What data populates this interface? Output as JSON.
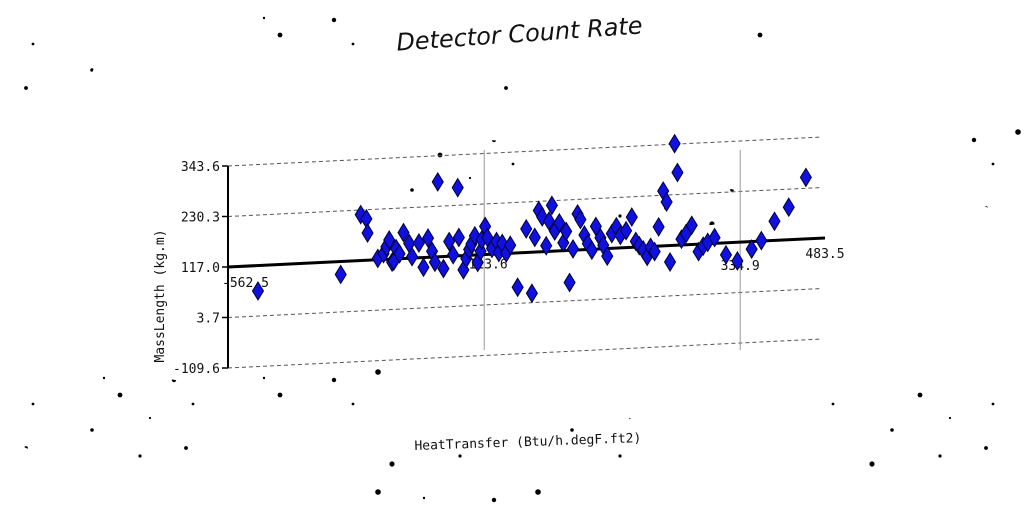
{
  "chart_data": {
    "type": "scatter",
    "title": "Detector Count Rate",
    "xlabel": "HeatTransfer (Btu/h.degF.ft2)",
    "ylabel": "MassLength (kg.m)",
    "x_tick_labels": [
      "-562.5",
      "-113.6",
      "334.9",
      "483.5"
    ],
    "y_tick_labels": [
      "343.6",
      "230.3",
      "117.0",
      "3.7",
      "-109.6"
    ],
    "xlim": [
      -562.5,
      483.5
    ],
    "ylim": [
      -109.6,
      343.6
    ],
    "grid": true,
    "legend": "none",
    "marker": "diamond",
    "colors": {
      "marker_fill": "#1010e0",
      "marker_edge": "#000033",
      "axis": "#000000",
      "grid": "#555555"
    },
    "points": [
      [
        -510,
        60
      ],
      [
        -365,
        88
      ],
      [
        -330,
        220
      ],
      [
        -320,
        210
      ],
      [
        -318,
        178
      ],
      [
        -300,
        120
      ],
      [
        -290,
        130
      ],
      [
        -285,
        145
      ],
      [
        -280,
        160
      ],
      [
        -275,
        110
      ],
      [
        -272,
        112
      ],
      [
        -268,
        140
      ],
      [
        -262,
        128
      ],
      [
        -255,
        175
      ],
      [
        -245,
        150
      ],
      [
        -240,
        120
      ],
      [
        -228,
        150
      ],
      [
        -220,
        95
      ],
      [
        -212,
        160
      ],
      [
        -205,
        130
      ],
      [
        -200,
        105
      ],
      [
        -195,
        285
      ],
      [
        -185,
        90
      ],
      [
        -175,
        150
      ],
      [
        -168,
        120
      ],
      [
        -160,
        270
      ],
      [
        -158,
        158
      ],
      [
        -150,
        85
      ],
      [
        -145,
        110
      ],
      [
        -140,
        130
      ],
      [
        -136,
        142
      ],
      [
        -130,
        160
      ],
      [
        -125,
        100
      ],
      [
        -120,
        125
      ],
      [
        -118,
        150
      ],
      [
        -112,
        180
      ],
      [
        -108,
        155
      ],
      [
        -100,
        130
      ],
      [
        -92,
        145
      ],
      [
        -88,
        120
      ],
      [
        -82,
        140
      ],
      [
        -75,
        118
      ],
      [
        -68,
        135
      ],
      [
        -55,
        40
      ],
      [
        -40,
        170
      ],
      [
        -30,
        25
      ],
      [
        -25,
        150
      ],
      [
        -18,
        210
      ],
      [
        -12,
        195
      ],
      [
        -5,
        130
      ],
      [
        0,
        185
      ],
      [
        5,
        220
      ],
      [
        10,
        162
      ],
      [
        18,
        180
      ],
      [
        25,
        135
      ],
      [
        30,
        160
      ],
      [
        36,
        45
      ],
      [
        42,
        120
      ],
      [
        50,
        198
      ],
      [
        55,
        185
      ],
      [
        62,
        150
      ],
      [
        68,
        130
      ],
      [
        75,
        115
      ],
      [
        82,
        168
      ],
      [
        90,
        142
      ],
      [
        95,
        125
      ],
      [
        102,
        100
      ],
      [
        110,
        150
      ],
      [
        118,
        165
      ],
      [
        125,
        145
      ],
      [
        135,
        155
      ],
      [
        145,
        185
      ],
      [
        152,
        130
      ],
      [
        158,
        120
      ],
      [
        165,
        110
      ],
      [
        172,
        95
      ],
      [
        178,
        115
      ],
      [
        185,
        105
      ],
      [
        192,
        160
      ],
      [
        200,
        240
      ],
      [
        206,
        215
      ],
      [
        212,
        80
      ],
      [
        220,
        345
      ],
      [
        225,
        280
      ],
      [
        232,
        130
      ],
      [
        240,
        142
      ],
      [
        250,
        160
      ],
      [
        262,
        100
      ],
      [
        270,
        112
      ],
      [
        278,
        120
      ],
      [
        290,
        130
      ],
      [
        310,
        90
      ],
      [
        330,
        75
      ],
      [
        355,
        100
      ],
      [
        372,
        118
      ],
      [
        395,
        160
      ],
      [
        420,
        190
      ],
      [
        450,
        255
      ]
    ]
  }
}
